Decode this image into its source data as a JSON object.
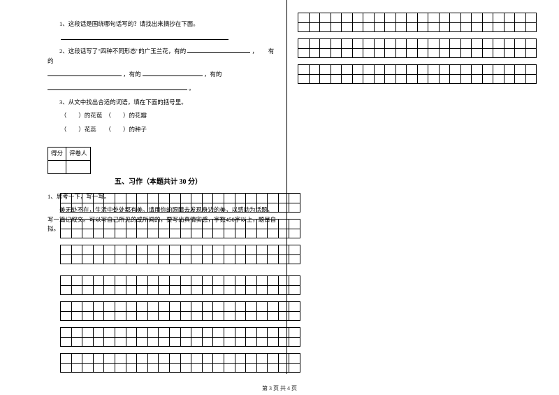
{
  "questions": {
    "q1": "1、这段话是围绕哪句话写的？请找出来摘抄在下面。",
    "q2_a": "2、这段话写了\"四种不同形态\"的广玉兰花，有的",
    "q2_b": "，",
    "q2_c": "有的",
    "q2_d": "，有的",
    "q2_e": "，有的",
    "q2_f": "。",
    "q3_a": "3、从文中找出合适的词语，填在下面的括号里。",
    "q3_b": "（　　）的花苞　（　　）的花瓣",
    "q3_c": "（　　）花蕊　　（　　）的种子"
  },
  "score": {
    "c1": "得分",
    "c2": "评卷人"
  },
  "section5": "五、习作（本题共计 30 分）",
  "essay": {
    "l1": "1、思考一下，写一写。",
    "l2": "美无处不在，生活中处处都有美。请用你的眼睛去发现身边的美，以感动为话题，写一篇记叙文。可以写自己所见的或所闻的，要写出真情实感，字数450字以上，题目自拟。"
  },
  "footer": "第 3 页  共 4 页",
  "grids": {
    "right_cols": 22,
    "right_rows": 2,
    "right_blocks": 3,
    "left_cols": 22,
    "left_rows_a": 2,
    "left_blocks_a": 3,
    "left_rows_b": 2,
    "left_blocks_b": 4
  },
  "layout": {
    "blank_w1": 240,
    "blank_w2": 90,
    "blank_w3": 106,
    "blank_w4": 86,
    "blank_w5": 86,
    "blank_w6": 200
  }
}
